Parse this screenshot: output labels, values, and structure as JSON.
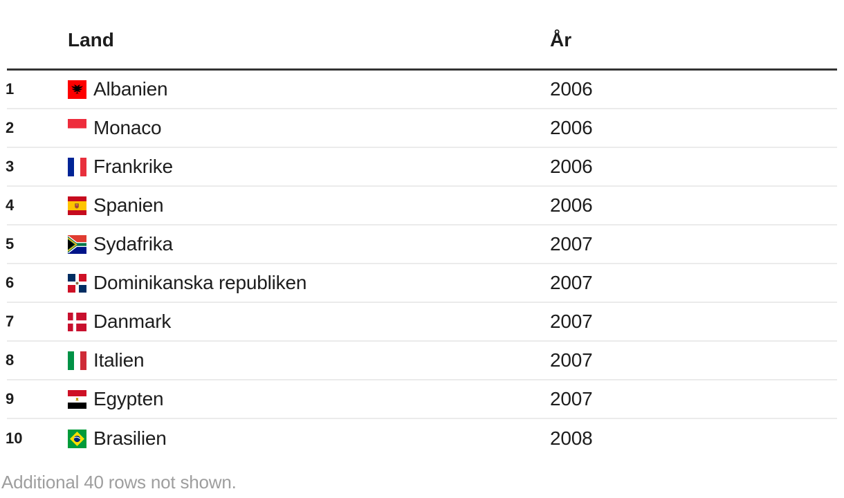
{
  "table": {
    "header": {
      "rank": "",
      "land": "Land",
      "year": "År"
    },
    "rows": [
      {
        "rank": "1",
        "country": "Albanien",
        "year": "2006",
        "flag_icon": "albania-flag-icon"
      },
      {
        "rank": "2",
        "country": "Monaco",
        "year": "2006",
        "flag_icon": "monaco-flag-icon"
      },
      {
        "rank": "3",
        "country": "Frankrike",
        "year": "2006",
        "flag_icon": "france-flag-icon"
      },
      {
        "rank": "4",
        "country": "Spanien",
        "year": "2006",
        "flag_icon": "spain-flag-icon"
      },
      {
        "rank": "5",
        "country": "Sydafrika",
        "year": "2007",
        "flag_icon": "south-africa-flag-icon"
      },
      {
        "rank": "6",
        "country": "Dominikanska republiken",
        "year": "2007",
        "flag_icon": "dominican-republic-flag-icon"
      },
      {
        "rank": "7",
        "country": "Danmark",
        "year": "2007",
        "flag_icon": "denmark-flag-icon"
      },
      {
        "rank": "8",
        "country": "Italien",
        "year": "2007",
        "flag_icon": "italy-flag-icon"
      },
      {
        "rank": "9",
        "country": "Egypten",
        "year": "2007",
        "flag_icon": "egypt-flag-icon"
      },
      {
        "rank": "10",
        "country": "Brasilien",
        "year": "2008",
        "flag_icon": "brazil-flag-icon"
      }
    ],
    "footer": "Additional 40 rows not shown."
  },
  "chart_data": {
    "type": "table",
    "columns": [
      "",
      "Land",
      "År"
    ],
    "rows": [
      [
        1,
        "Albanien",
        2006
      ],
      [
        2,
        "Monaco",
        2006
      ],
      [
        3,
        "Frankrike",
        2006
      ],
      [
        4,
        "Spanien",
        2006
      ],
      [
        5,
        "Sydafrika",
        2007
      ],
      [
        6,
        "Dominikanska republiken",
        2007
      ],
      [
        7,
        "Danmark",
        2007
      ],
      [
        8,
        "Italien",
        2007
      ],
      [
        9,
        "Egypten",
        2007
      ],
      [
        10,
        "Brasilien",
        2008
      ]
    ],
    "note": "Additional 40 rows not shown."
  },
  "colors": {
    "text": "#1d1d1d",
    "header_rule": "#333333",
    "row_separator": "#ebebeb",
    "footer_text": "#9e9e9e",
    "background": "#ffffff"
  }
}
